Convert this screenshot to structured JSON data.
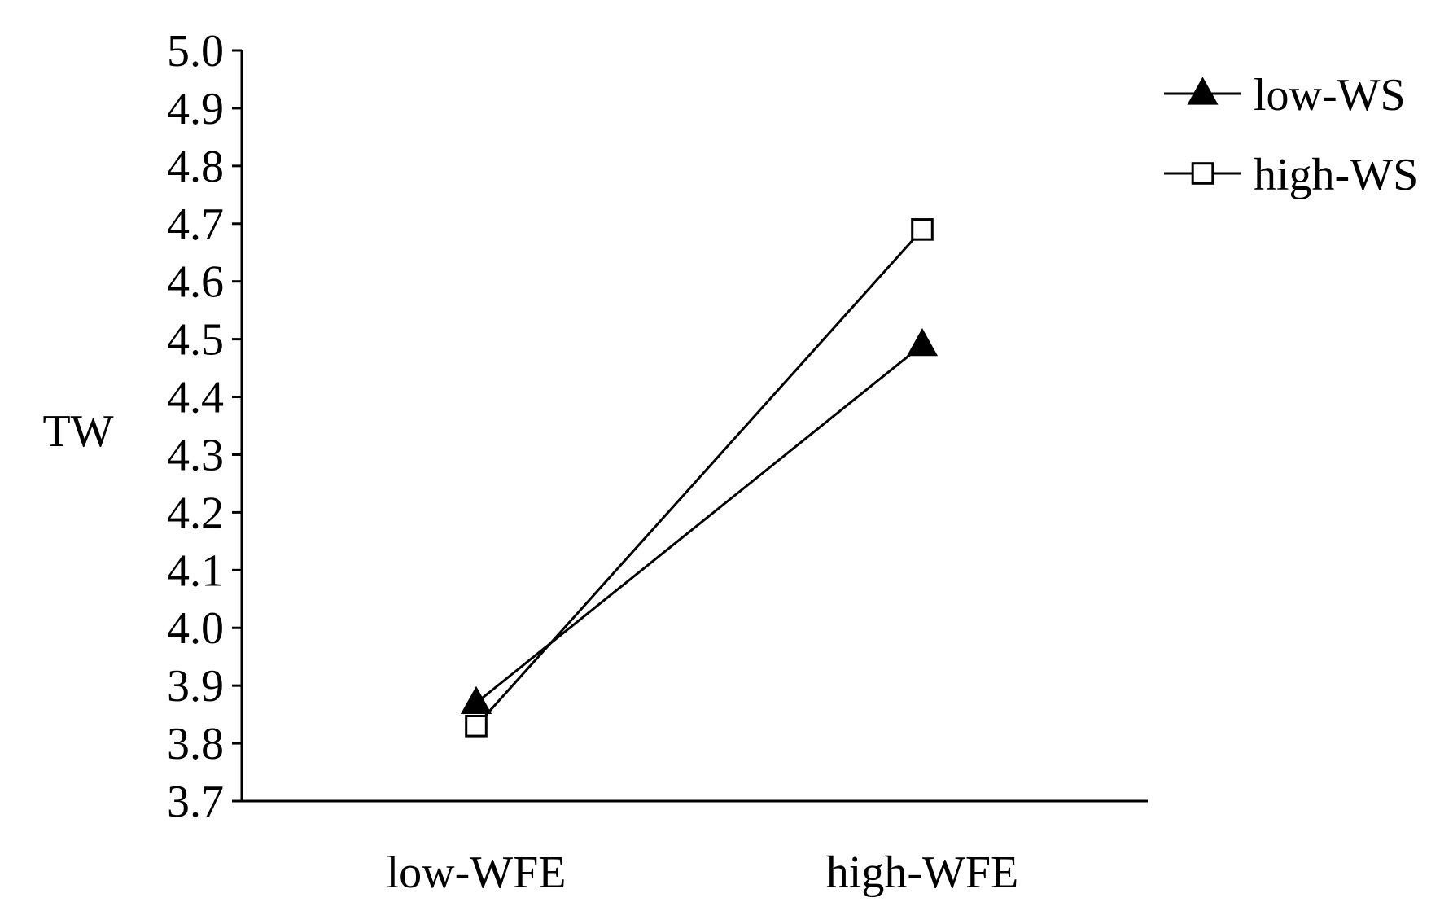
{
  "chart_data": {
    "type": "line",
    "title": "",
    "xlabel": "",
    "ylabel": "TW",
    "categories": [
      "low-WFE",
      "high-WFE"
    ],
    "ylim": [
      3.7,
      5.0
    ],
    "yticks": [
      "5.0",
      "4.9",
      "4.8",
      "4.7",
      "4.6",
      "4.5",
      "4.4",
      "4.3",
      "4.2",
      "4.1",
      "4.0",
      "3.9",
      "3.8",
      "3.7"
    ],
    "grid": false,
    "legend_position": "top-right",
    "series": [
      {
        "name": "low-WS",
        "marker": "filled-triangle",
        "color": "#000000",
        "values": [
          3.87,
          4.49
        ]
      },
      {
        "name": "high-WS",
        "marker": "open-square",
        "color": "#000000",
        "values": [
          3.83,
          4.69
        ]
      }
    ]
  }
}
